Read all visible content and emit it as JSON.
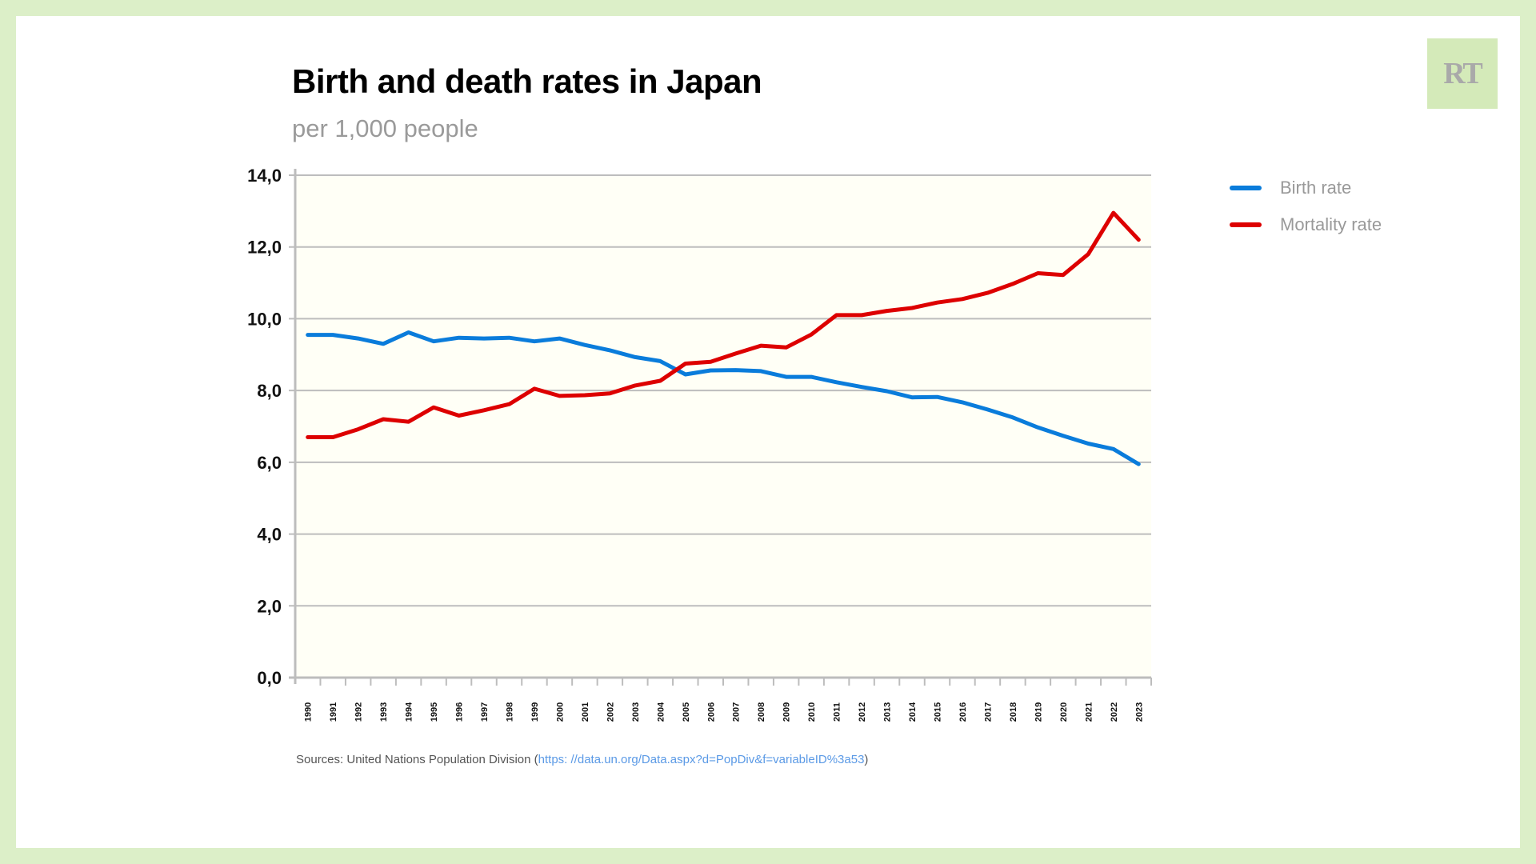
{
  "logo": {
    "text": "RT",
    "background": "#d4eab9",
    "color": "#a9a9a9"
  },
  "frame": {
    "outer_color": "#dcefc8",
    "panel_color": "#ffffff"
  },
  "header": {
    "title": "Birth and death rates in Japan",
    "subtitle": "per 1,000 people"
  },
  "legend": {
    "placement": "right",
    "items": [
      {
        "label": "Birth rate",
        "color": "#0a7cdb"
      },
      {
        "label": "Mortality rate",
        "color": "#dd0000"
      }
    ]
  },
  "source": {
    "prefix": "Sources: United Nations Population Division (",
    "link": "https: //data.un.org/Data.aspx?d=PopDiv&f=variableID%3a53",
    "suffix": ")"
  },
  "chart_data": {
    "type": "line",
    "title": "Birth and death rates in Japan",
    "subtitle": "per 1,000 people",
    "xlabel": "",
    "ylabel": "",
    "ylim": [
      0,
      14
    ],
    "yticks": [
      0,
      2,
      4,
      6,
      8,
      10,
      12,
      14
    ],
    "ytick_labels": [
      "0,0",
      "2,0",
      "4,0",
      "6,0",
      "8,0",
      "10,0",
      "12,0",
      "14,0"
    ],
    "grid": true,
    "plot_background": "#fffff6",
    "legend_position": "right",
    "categories": [
      "1990",
      "1991",
      "1992",
      "1993",
      "1994",
      "1995",
      "1996",
      "1997",
      "1998",
      "1999",
      "2000",
      "2001",
      "2002",
      "2003",
      "2004",
      "2005",
      "2006",
      "2007",
      "2008",
      "2009",
      "2010",
      "2011",
      "2012",
      "2013",
      "2014",
      "2015",
      "2016",
      "2017",
      "2018",
      "2019",
      "2020",
      "2021",
      "2022",
      "2023"
    ],
    "series": [
      {
        "name": "Birth rate",
        "color": "#0a7cdb",
        "values": [
          9.55,
          9.55,
          9.45,
          9.3,
          9.62,
          9.37,
          9.47,
          9.45,
          9.47,
          9.37,
          9.45,
          9.27,
          9.12,
          8.93,
          8.82,
          8.45,
          8.56,
          8.57,
          8.54,
          8.38,
          8.38,
          8.23,
          8.1,
          7.98,
          7.81,
          7.82,
          7.67,
          7.47,
          7.25,
          6.97,
          6.74,
          6.52,
          6.37,
          5.95
        ]
      },
      {
        "name": "Mortality rate",
        "color": "#dd0000",
        "values": [
          6.7,
          6.7,
          6.92,
          7.2,
          7.13,
          7.53,
          7.3,
          7.45,
          7.62,
          8.05,
          7.85,
          7.87,
          7.92,
          8.14,
          8.27,
          8.75,
          8.8,
          9.03,
          9.25,
          9.2,
          9.56,
          10.1,
          10.1,
          10.22,
          10.3,
          10.45,
          10.55,
          10.72,
          10.97,
          11.27,
          11.22,
          11.8,
          12.95,
          12.2
        ]
      }
    ]
  }
}
